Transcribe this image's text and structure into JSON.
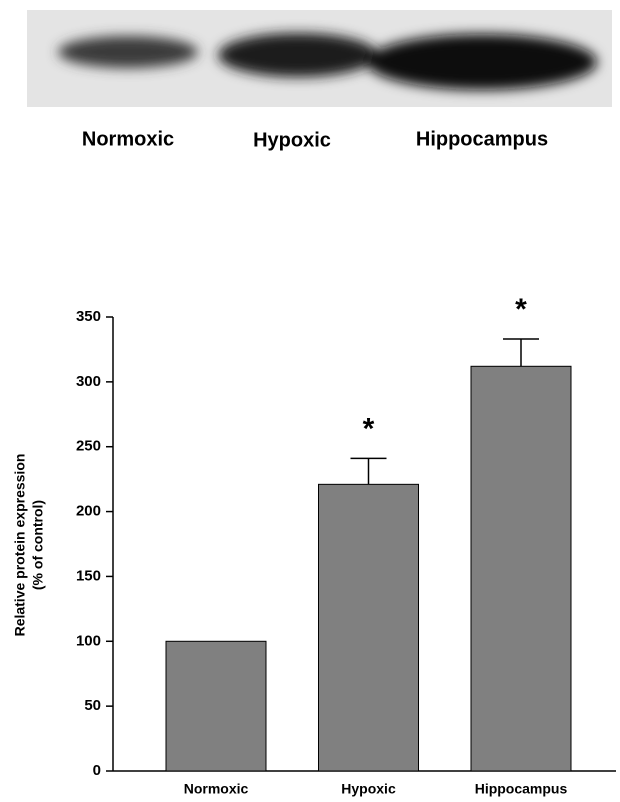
{
  "blot": {
    "lanes": [
      "Normoxic",
      "Hypoxic",
      "Hippocampus"
    ]
  },
  "chart_data": {
    "type": "bar",
    "y_label": [
      "Relative protein expression",
      "(% of control)"
    ],
    "categories": [
      "Normoxic",
      "Hypoxic",
      "Hippocampus"
    ],
    "values": [
      100,
      221,
      312
    ],
    "errors": [
      null,
      20,
      21
    ],
    "significance": [
      null,
      "*",
      "*"
    ],
    "color": "#808080",
    "ylim": [
      0,
      350
    ],
    "yticks": [
      0,
      50,
      100,
      150,
      200,
      250,
      300,
      350
    ],
    "grid": false
  }
}
